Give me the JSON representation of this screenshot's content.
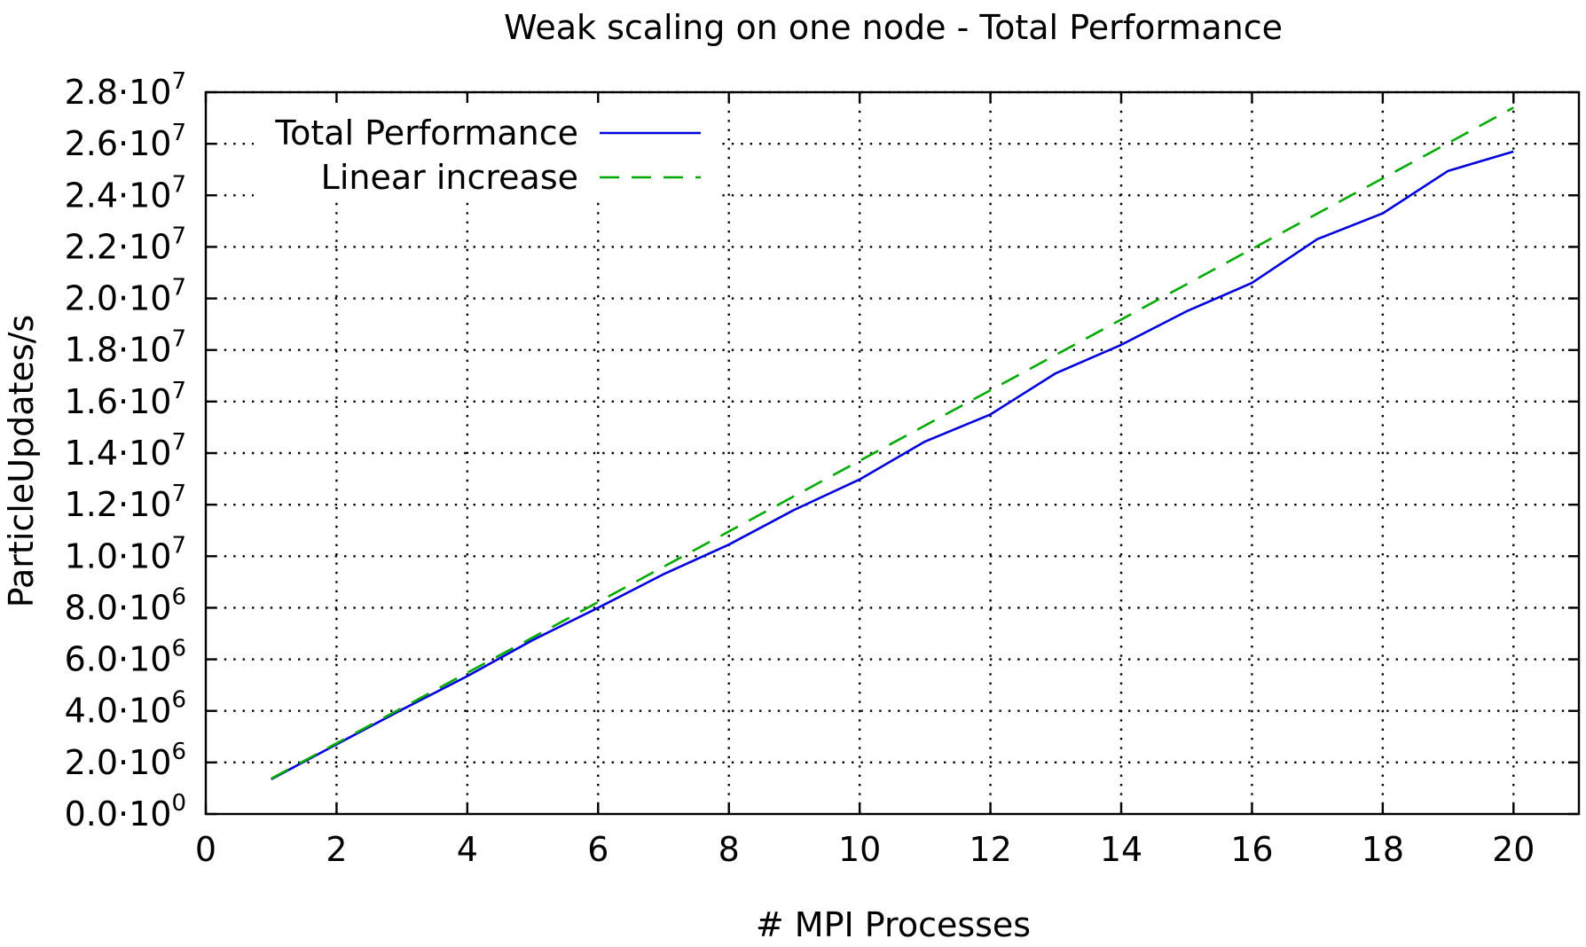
{
  "chart_data": {
    "type": "line",
    "title": "Weak scaling on one node - Total Performance",
    "xlabel": "# MPI Processes",
    "ylabel": "ParticleUpdates/s",
    "xlim": [
      0,
      21
    ],
    "ylim": [
      0,
      28000000
    ],
    "grid": true,
    "legend_position": "top-left",
    "x_ticks": [
      "0",
      "2",
      "4",
      "6",
      "8",
      "10",
      "12",
      "14",
      "16",
      "18",
      "20"
    ],
    "y_ticks": [
      {
        "mantissa": "0.0",
        "exp": "0"
      },
      {
        "mantissa": "2.0",
        "exp": "6"
      },
      {
        "mantissa": "4.0",
        "exp": "6"
      },
      {
        "mantissa": "6.0",
        "exp": "6"
      },
      {
        "mantissa": "8.0",
        "exp": "6"
      },
      {
        "mantissa": "1.0",
        "exp": "7"
      },
      {
        "mantissa": "1.2",
        "exp": "7"
      },
      {
        "mantissa": "1.4",
        "exp": "7"
      },
      {
        "mantissa": "1.6",
        "exp": "7"
      },
      {
        "mantissa": "1.8",
        "exp": "7"
      },
      {
        "mantissa": "2.0",
        "exp": "7"
      },
      {
        "mantissa": "2.2",
        "exp": "7"
      },
      {
        "mantissa": "2.4",
        "exp": "7"
      },
      {
        "mantissa": "2.6",
        "exp": "7"
      },
      {
        "mantissa": "2.8",
        "exp": "7"
      }
    ],
    "tick_prefix": "·10",
    "series": [
      {
        "name": "Total Performance",
        "color": "#0000dd",
        "dash": "solid",
        "x": [
          1,
          2,
          3,
          4,
          5,
          6,
          7,
          8,
          9,
          10,
          11,
          12,
          13,
          14,
          15,
          16,
          17,
          18,
          19,
          20
        ],
        "y": [
          1350000,
          2700000,
          4050000,
          5350000,
          6750000,
          8000000,
          9300000,
          10450000,
          11800000,
          12980000,
          14450000,
          15500000,
          17100000,
          18200000,
          19500000,
          20600000,
          22300000,
          23300000,
          24950000,
          25700000
        ]
      },
      {
        "name": "Linear increase",
        "color": "#00aa00",
        "dash": "dashed",
        "x": [
          1,
          2,
          3,
          4,
          5,
          6,
          7,
          8,
          9,
          10,
          11,
          12,
          13,
          14,
          15,
          16,
          17,
          18,
          19,
          20
        ],
        "y": [
          1370000,
          2740000,
          4110000,
          5480000,
          6850000,
          8220000,
          9590000,
          10960000,
          12330000,
          13700000,
          15070000,
          16440000,
          17810000,
          19180000,
          20550000,
          21920000,
          23290000,
          24660000,
          26030000,
          27400000
        ]
      }
    ]
  }
}
